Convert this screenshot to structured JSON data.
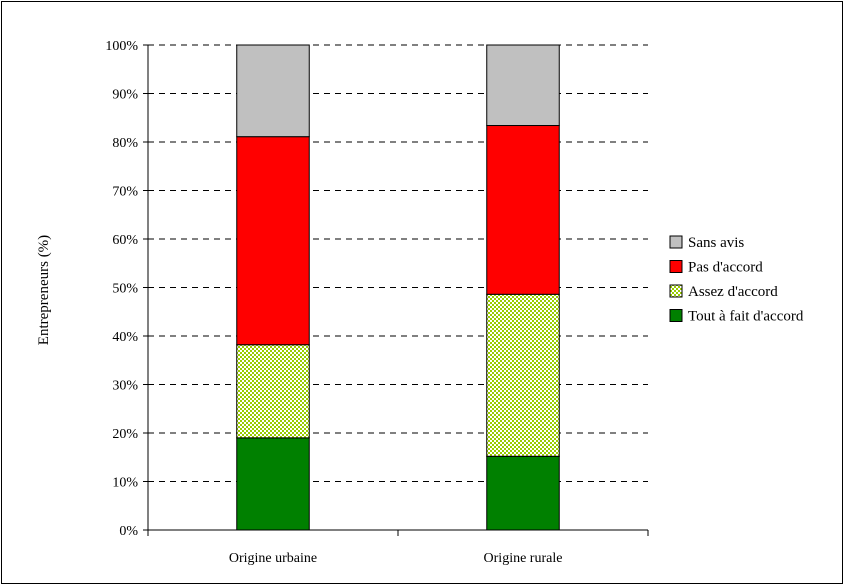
{
  "chart_data": {
    "type": "bar",
    "stacked": true,
    "normalized_percent": true,
    "categories": [
      "Origine urbaine",
      "Origine rurale"
    ],
    "series": [
      {
        "name": "Tout à fait d'accord",
        "values": [
          19,
          15.2
        ],
        "color": "#008000",
        "pattern": "solid"
      },
      {
        "name": "Assez d'accord",
        "values": [
          19.2,
          33.4
        ],
        "color": "#99cc00",
        "pattern": "checker"
      },
      {
        "name": "Pas d'accord",
        "values": [
          42.9,
          34.8
        ],
        "color": "#ff0000",
        "pattern": "solid"
      },
      {
        "name": "Sans avis",
        "values": [
          18.9,
          16.6
        ],
        "color": "#c0c0c0",
        "pattern": "solid"
      }
    ],
    "ylabel": "Entrepreneurs (%)",
    "xlabel": "",
    "ylim": [
      0,
      100
    ],
    "y_ticks": [
      "0%",
      "10%",
      "20%",
      "30%",
      "40%",
      "50%",
      "60%",
      "70%",
      "80%",
      "90%",
      "100%"
    ],
    "gridlines": "dashed",
    "legend_position": "right",
    "legend_order": [
      "Sans avis",
      "Pas d'accord",
      "Assez d'accord",
      "Tout à fait d'accord"
    ]
  }
}
